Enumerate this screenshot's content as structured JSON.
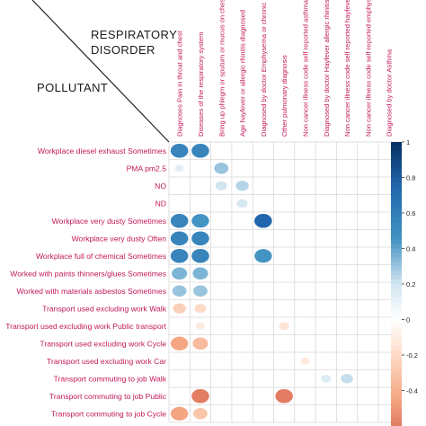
{
  "header": {
    "respiratory_line1": "RESPIRATORY",
    "respiratory_line2": "DISORDER",
    "pollutant": "POLLUTANT"
  },
  "colors": {
    "label_text": "#c2185b",
    "grid": "#d8d8d8",
    "positive_strong": "#053061",
    "positive_mid": "#4393c3",
    "negative_mid": "#d6604d",
    "negative_strong": "#67001f"
  },
  "chart_data": {
    "type": "heatmap",
    "title": "",
    "columns": [
      "Diagnoses Pain in throat and chest",
      "Diseases of the respiratory system",
      "Bring up phlegm or sputum or mucus on chest",
      "Age hayfever or allergic rhinitis diagnosed",
      "Diagnosed by doctor Emphysema or chronic bronchitis",
      "Other pulmonary diagnosis",
      "Non cancer illness code self reported asthma",
      "Diagnosed by doctor Hayfever allergic rhinitis",
      "Non cancer illness code self reported hayfever",
      "Non cancer illness code self reported emphysema",
      "Diagnosed by doctor Asthma"
    ],
    "rows": [
      "Workplace diesel exhaust Sometimes",
      "PMA pm2.5",
      "NO",
      "ND",
      "Workplace very dusty Sometimes",
      "Workplace very dusty Often",
      "Workplace full of chemical Sometimes",
      "Worked with paints thinners/glues Sometimes",
      "Worked with materials asbestos Sometimes",
      "Transport used excluding work Walk",
      "Transport used excluding work Public transport",
      "Transport used excluding work Cycle",
      "Transport used excluding work Car",
      "Transport commuting to job Walk",
      "Transport commuting to job Public",
      "Transport commuting to job Cycle"
    ],
    "cells": [
      {
        "row": 0,
        "col": 0,
        "value": 0.55
      },
      {
        "row": 0,
        "col": 1,
        "value": 0.55
      },
      {
        "row": 1,
        "col": 0,
        "value": 0.12
      },
      {
        "row": 1,
        "col": 2,
        "value": 0.3
      },
      {
        "row": 2,
        "col": 2,
        "value": 0.2
      },
      {
        "row": 2,
        "col": 3,
        "value": 0.25
      },
      {
        "row": 3,
        "col": 3,
        "value": 0.18
      },
      {
        "row": 4,
        "col": 0,
        "value": 0.55
      },
      {
        "row": 4,
        "col": 1,
        "value": 0.45
      },
      {
        "row": 4,
        "col": 4,
        "value": 0.75
      },
      {
        "row": 5,
        "col": 0,
        "value": 0.55
      },
      {
        "row": 5,
        "col": 1,
        "value": 0.55
      },
      {
        "row": 6,
        "col": 0,
        "value": 0.55
      },
      {
        "row": 6,
        "col": 1,
        "value": 0.55
      },
      {
        "row": 6,
        "col": 4,
        "value": 0.45
      },
      {
        "row": 7,
        "col": 0,
        "value": 0.35
      },
      {
        "row": 7,
        "col": 1,
        "value": 0.35
      },
      {
        "row": 8,
        "col": 0,
        "value": 0.3
      },
      {
        "row": 8,
        "col": 1,
        "value": 0.3
      },
      {
        "row": 9,
        "col": 0,
        "value": -0.25
      },
      {
        "row": 9,
        "col": 1,
        "value": -0.2
      },
      {
        "row": 10,
        "col": 1,
        "value": -0.12
      },
      {
        "row": 10,
        "col": 5,
        "value": -0.15
      },
      {
        "row": 11,
        "col": 0,
        "value": -0.45
      },
      {
        "row": 11,
        "col": 1,
        "value": -0.35
      },
      {
        "row": 12,
        "col": 6,
        "value": -0.12
      },
      {
        "row": 13,
        "col": 7,
        "value": 0.15
      },
      {
        "row": 13,
        "col": 8,
        "value": 0.22
      },
      {
        "row": 14,
        "col": 1,
        "value": -0.6
      },
      {
        "row": 14,
        "col": 5,
        "value": -0.6
      },
      {
        "row": 15,
        "col": 0,
        "value": -0.45
      },
      {
        "row": 15,
        "col": 1,
        "value": -0.3
      }
    ],
    "colorbar": {
      "range": [
        -0.6,
        1
      ],
      "ticks": [
        1,
        0.8,
        0.6,
        0.4,
        0.2,
        0,
        -0.2,
        -0.4
      ],
      "tick_labels": [
        "1",
        "0.8",
        "0.6",
        "0.4",
        "0.2",
        "0",
        "-0.2",
        "-0.4"
      ]
    }
  }
}
